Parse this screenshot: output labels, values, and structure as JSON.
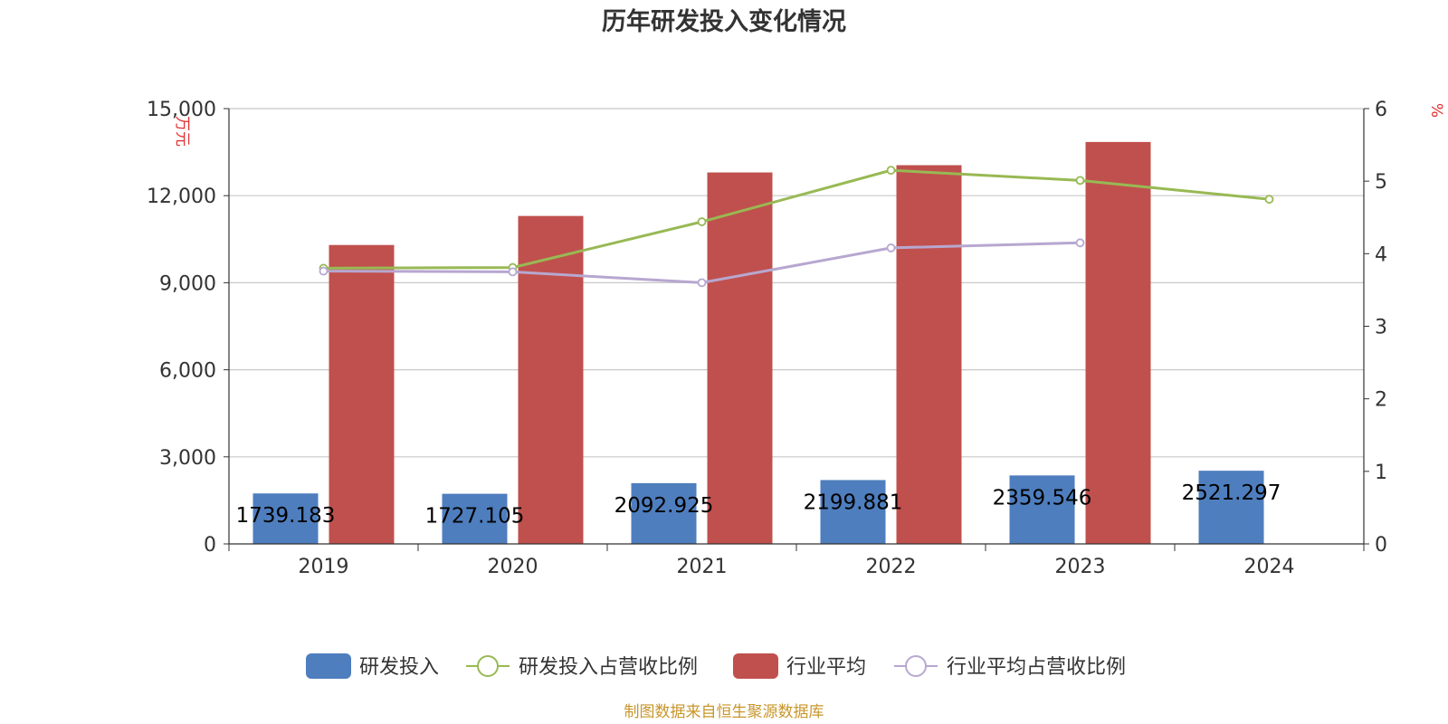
{
  "chart_data": {
    "type": "bar",
    "title": "历年研发投入变化情况",
    "categories": [
      "2019",
      "2020",
      "2021",
      "2022",
      "2023",
      "2024"
    ],
    "left_axis": {
      "unit": "万元",
      "ticks": [
        "0",
        "3,000",
        "6,000",
        "9,000",
        "12,000",
        "15,000"
      ],
      "ylim": [
        0,
        15000
      ]
    },
    "right_axis": {
      "unit": "%",
      "ticks": [
        "0",
        "1",
        "2",
        "3",
        "4",
        "5",
        "6"
      ],
      "ylim": [
        0,
        6
      ]
    },
    "series": [
      {
        "name": "研发投入",
        "type": "bar",
        "axis": "left",
        "color": "#4e7ebe",
        "values": [
          1739.183,
          1727.105,
          2092.925,
          2199.881,
          2359.546,
          2521.297
        ],
        "labels": [
          "1739.183",
          "1727.105",
          "2092.925",
          "2199.881",
          "2359.546",
          "2521.297"
        ]
      },
      {
        "name": "研发投入占营收比例",
        "type": "line",
        "axis": "right",
        "color": "#98b954",
        "values": [
          3.8,
          3.81,
          4.44,
          5.15,
          5.01,
          4.75
        ]
      },
      {
        "name": "行业平均",
        "type": "bar",
        "axis": "left",
        "color": "#c0504d",
        "values": [
          10300,
          11300,
          12800,
          13050,
          13850,
          null
        ]
      },
      {
        "name": "行业平均占营收比例",
        "type": "line",
        "axis": "right",
        "color": "#b7a7d0",
        "values": [
          3.76,
          3.75,
          3.6,
          4.08,
          4.15,
          null
        ]
      }
    ],
    "grid": true,
    "legend_position": "bottom"
  },
  "source": "制图数据来自恒生聚源数据库"
}
